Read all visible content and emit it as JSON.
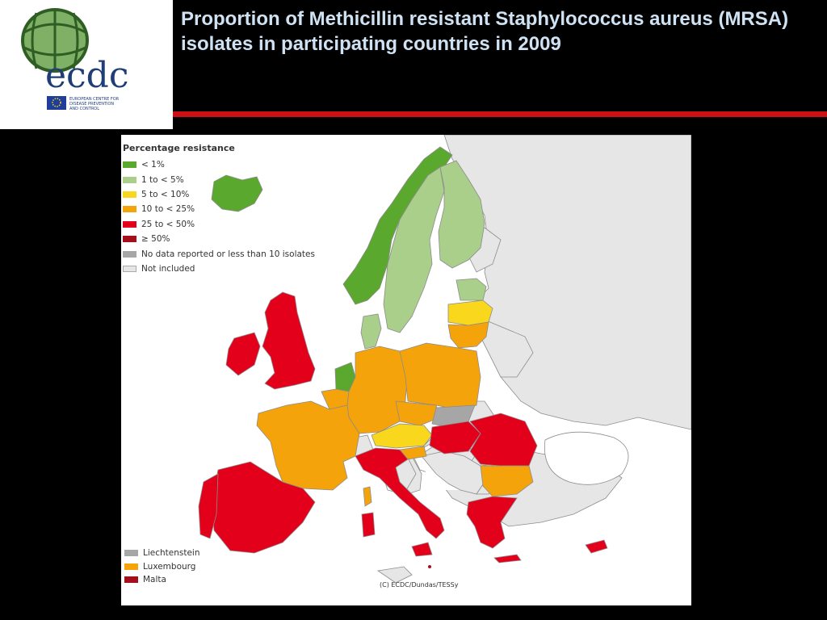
{
  "slide": {
    "title": "Proportion of Methicillin resistant Staphylococcus aureus (MRSA) isolates in participating countries in 2009"
  },
  "logo": {
    "wordmark": "ecdc",
    "agency_lines": [
      "EUROPEAN CENTRE FOR",
      "DISEASE PREVENTION",
      "AND CONTROL"
    ]
  },
  "map": {
    "legend": {
      "title": "Percentage resistance",
      "items": [
        {
          "label": "< 1%",
          "color": "#5aa82e"
        },
        {
          "label": "1 to < 5%",
          "color": "#a9cf8b"
        },
        {
          "label": "5 to < 10%",
          "color": "#f9d71c"
        },
        {
          "label": "10 to < 25%",
          "color": "#f5a30a"
        },
        {
          "label": "25 to < 50%",
          "color": "#e3001b"
        },
        {
          "label": "≥ 50%",
          "color": "#a50f1b"
        },
        {
          "label": "No data reported or less than 10 isolates",
          "color": "#a6a6a6"
        },
        {
          "label": "Not included",
          "color": "#e6e6e6"
        }
      ]
    },
    "small_countries": [
      {
        "label": "Liechtenstein",
        "color": "#a6a6a6"
      },
      {
        "label": "Luxembourg",
        "color": "#f5a30a"
      },
      {
        "label": "Malta",
        "color": "#a50f1b"
      }
    ],
    "copyright": "(C) ECDC/Dundas/TESSy",
    "colors": {
      "sea": "#ffffff",
      "border": "#8c8c8c",
      "non_eu": "#e6e6e6"
    }
  }
}
